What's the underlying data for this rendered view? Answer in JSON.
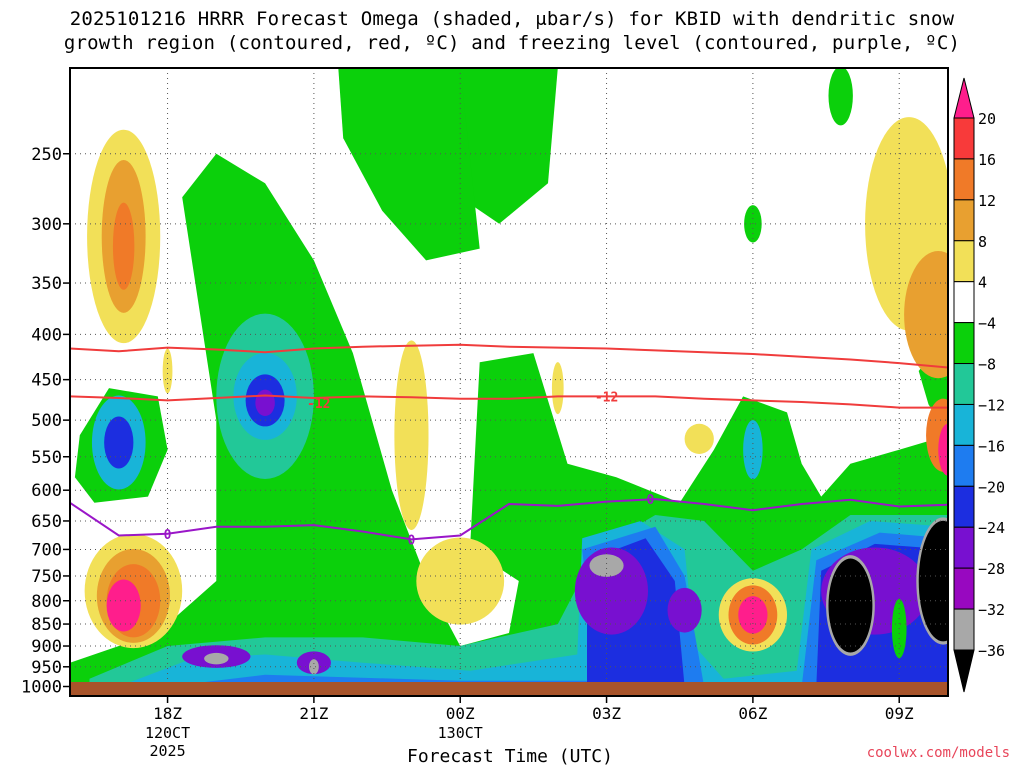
{
  "title_line1": "2025101216 HRRR Forecast Omega (shaded, μbar/s) for KBID with dendritic snow",
  "title_line2": "growth region (contoured, red, ºC) and freezing level (contoured, purple, ºC)",
  "credit": "coolwx.com/models",
  "chart_data": {
    "type": "heatmap",
    "title": "2025101216 HRRR Forecast Omega (shaded, μbar/s) for KBID with dendritic snow growth region (contoured, red, ºC) and freezing level (contoured, purple, ºC)",
    "xlabel": "Forecast Time (UTC)",
    "ylabel": "",
    "x_range_hours": [
      16,
      34
    ],
    "y_range_hpa": [
      200,
      1025
    ],
    "y_scale": "log-pressure",
    "grid": true,
    "y_ticks": [
      250,
      300,
      350,
      400,
      450,
      500,
      550,
      600,
      650,
      700,
      750,
      800,
      850,
      900,
      950,
      1000
    ],
    "x_ticks": [
      {
        "hour": 18,
        "label": "18Z",
        "sub": [
          "120CT",
          "2025"
        ]
      },
      {
        "hour": 21,
        "label": "21Z",
        "sub": []
      },
      {
        "hour": 24,
        "label": "00Z",
        "sub": [
          "130CT"
        ]
      },
      {
        "hour": 27,
        "label": "03Z",
        "sub": []
      },
      {
        "hour": 30,
        "label": "06Z",
        "sub": []
      },
      {
        "hour": 33,
        "label": "09Z",
        "sub": []
      }
    ],
    "colorbar": {
      "labels": [
        "20",
        "16",
        "12",
        "8",
        "4",
        "−4",
        "−8",
        "−12",
        "−16",
        "−20",
        "−24",
        "−28",
        "−32",
        "−36"
      ],
      "colors": [
        "#ff1e8c",
        "#f83a3a",
        "#f07a28",
        "#e8a030",
        "#f2e058",
        "#ffffff",
        "#0bd00b",
        "#22c898",
        "#18b4d8",
        "#1e7cf0",
        "#1c2ee0",
        "#7810d0",
        "#9808c0",
        "#a8a8a8",
        "#000000"
      ]
    },
    "omega_features": [
      {
        "type": "positive",
        "label_value": 12,
        "x": 17.1,
        "p": 320
      },
      {
        "type": "positive",
        "label_value": 20,
        "x": 17.1,
        "p": 810
      },
      {
        "type": "positive",
        "label_value": 20,
        "x": 30.0,
        "p": 830
      },
      {
        "type": "negative",
        "label_value": -24,
        "x": 17.0,
        "p": 530
      },
      {
        "type": "negative",
        "label_value": -24,
        "x": 20.0,
        "p": 470
      },
      {
        "type": "negative",
        "label_value": -32,
        "x": 27.0,
        "p": 740
      },
      {
        "type": "negative",
        "label_value": -36,
        "x": 32.0,
        "p": 800
      },
      {
        "type": "negative",
        "label_value": -36,
        "x": 33.9,
        "p": 750
      }
    ],
    "series": [
      {
        "name": "-12",
        "x": [
          16,
          17,
          18,
          19,
          20,
          21,
          22,
          23,
          24,
          25,
          26,
          27,
          28,
          29,
          30,
          31,
          32,
          33,
          34
        ],
        "y": [
          415,
          418,
          414,
          416,
          419,
          415,
          413,
          412,
          411,
          413,
          414,
          415,
          417,
          419,
          421,
          424,
          427,
          431,
          436
        ]
      },
      {
        "name": "-12",
        "x": [
          16,
          17,
          18,
          19,
          20,
          21,
          22,
          23,
          24,
          25,
          26,
          27,
          28,
          29,
          30,
          31,
          32,
          33,
          34
        ],
        "y": [
          470,
          472,
          475,
          472,
          469,
          472,
          470,
          471,
          473,
          473,
          470,
          470,
          470,
          473,
          475,
          477,
          480,
          484,
          484
        ]
      },
      {
        "name": "0",
        "x": [
          16,
          17,
          18,
          19,
          20,
          21,
          22,
          23,
          24,
          25,
          26,
          27,
          28,
          29,
          30,
          31,
          32,
          33,
          34
        ],
        "y": [
          620,
          675,
          672,
          660,
          660,
          657,
          668,
          682,
          675,
          622,
          625,
          618,
          614,
          622,
          632,
          622,
          615,
          626,
          623
        ]
      }
    ],
    "contour_labels": [
      {
        "text": "-12",
        "x": 21.1,
        "p": 478
      },
      {
        "text": "-12",
        "x": 27.0,
        "p": 470
      },
      {
        "text": "0",
        "x": 18.0,
        "p": 672
      },
      {
        "text": "0",
        "x": 23.0,
        "p": 682
      },
      {
        "text": "0",
        "x": 27.9,
        "p": 614
      }
    ]
  }
}
